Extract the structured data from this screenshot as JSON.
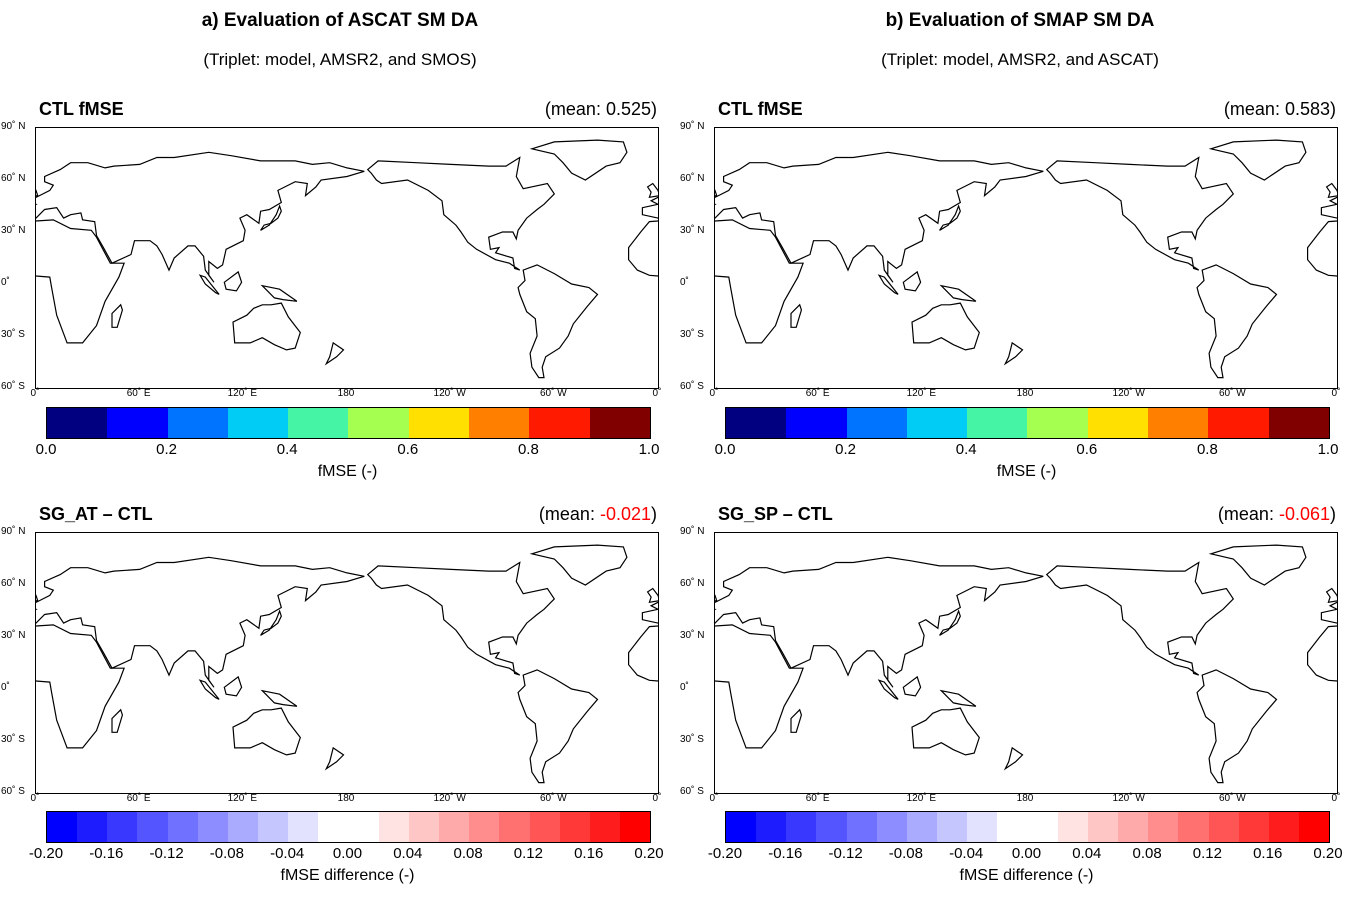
{
  "columns": [
    {
      "title": "a) Evaluation of ASCAT SM DA",
      "subtitle": "(Triplet: model, AMSR2, and SMOS)"
    },
    {
      "title": "b) Evaluation of SMAP SM DA",
      "subtitle": "(Triplet: model, AMSR2, and ASCAT)"
    }
  ],
  "panels": [
    {
      "title": "CTL fMSE",
      "mean_prefix": "(mean: ",
      "mean_value": "0.525",
      "mean_suffix": ")",
      "value_negative": false
    },
    {
      "title": "CTL fMSE",
      "mean_prefix": "(mean: ",
      "mean_value": "0.583",
      "mean_suffix": ")",
      "value_negative": false
    },
    {
      "title": "SG_AT – CTL",
      "mean_prefix": "(mean: ",
      "mean_value": "-0.021",
      "mean_suffix": ")",
      "value_negative": true
    },
    {
      "title": "SG_SP – CTL",
      "mean_prefix": "(mean: ",
      "mean_value": "-0.061",
      "mean_suffix": ")",
      "value_negative": true
    }
  ],
  "lat_ticks": [
    "90˚ N",
    "60˚ N",
    "30˚ N",
    "0˚",
    "30˚ S",
    "60˚ S"
  ],
  "lon_ticks": [
    "0˚",
    "60˚ E",
    "120˚ E",
    "180",
    "120˚ W",
    "60˚ W",
    "0˚"
  ],
  "colorbars": {
    "fmse": {
      "label": "fMSE (-)",
      "ticks": [
        "0.0",
        "0.2",
        "0.4",
        "0.6",
        "0.8",
        "1.0"
      ],
      "colors": [
        "#000080",
        "#0000ff",
        "#0073ff",
        "#00ccf5",
        "#45f5a5",
        "#a5ff50",
        "#ffe000",
        "#ff7f00",
        "#ff1a00",
        "#800000"
      ]
    },
    "diff": {
      "label": "fMSE difference (-)",
      "ticks": [
        "-0.20",
        "-0.16",
        "-0.12",
        "-0.08",
        "-0.04",
        "0.00",
        "0.04",
        "0.08",
        "0.12",
        "0.16",
        "0.20"
      ],
      "colors": [
        "#0000ff",
        "#1c1cff",
        "#3838ff",
        "#5555ff",
        "#7171ff",
        "#8d8dff",
        "#aaaaff",
        "#c6c6ff",
        "#e2e2ff",
        "#ffffff",
        "#ffffff",
        "#ffe2e2",
        "#ffc6c6",
        "#ffaaaa",
        "#ff8d8d",
        "#ff7171",
        "#ff5555",
        "#ff3838",
        "#ff1c1c",
        "#ff0000"
      ]
    }
  }
}
